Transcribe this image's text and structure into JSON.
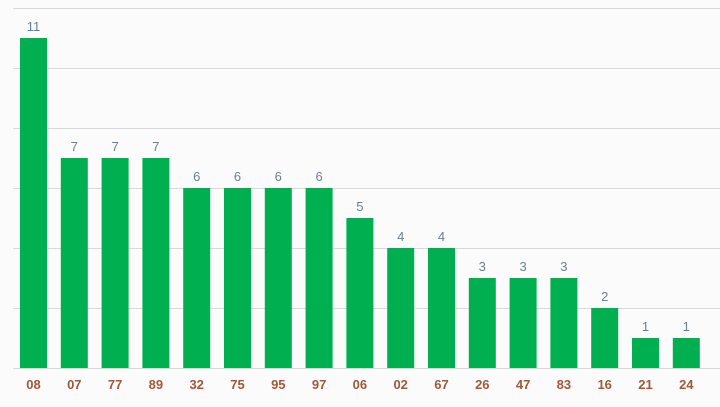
{
  "chart_data": {
    "type": "bar",
    "title": "",
    "xlabel": "",
    "ylabel": "",
    "categories": [
      "08",
      "07",
      "77",
      "89",
      "32",
      "75",
      "95",
      "97",
      "06",
      "02",
      "67",
      "26",
      "47",
      "83",
      "16",
      "21",
      "24"
    ],
    "values": [
      11,
      7,
      7,
      7,
      6,
      6,
      6,
      6,
      5,
      4,
      4,
      3,
      3,
      3,
      2,
      1,
      1
    ],
    "ylim": [
      0,
      12
    ],
    "grid": true,
    "grid_step": 2,
    "colors": {
      "bar": "#00b050",
      "value_label": "#6a7f94",
      "category_label": "#a0583a",
      "grid": "#d9d9d9"
    }
  }
}
